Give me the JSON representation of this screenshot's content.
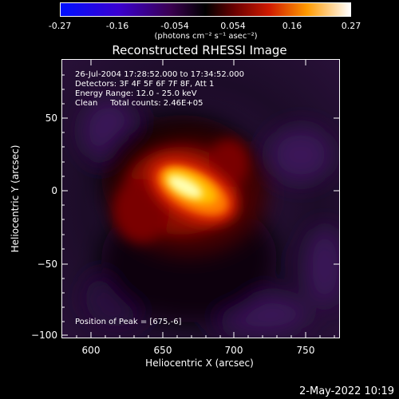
{
  "colorbar": {
    "ticks": [
      "-0.27",
      "-0.16",
      "-0.054",
      "0.054",
      "0.16",
      "0.27"
    ],
    "units_label": "(photons cm⁻² s⁻¹ asec⁻²)"
  },
  "chart_data": {
    "type": "heatmap",
    "title": "Reconstructed RHESSI Image",
    "xlabel": "Heliocentric X (arcsec)",
    "ylabel": "Heliocentric Y (arcsec)",
    "xlim": [
      580,
      773
    ],
    "ylim": [
      -103,
      100
    ],
    "x_ticks": [
      "600",
      "650",
      "700",
      "750"
    ],
    "y_ticks": [
      "50",
      "0",
      "−50",
      "−100"
    ],
    "colorbar_range": [
      -0.27,
      0.27
    ],
    "annotations": {
      "line1": "26-Jul-2004 17:28:52.000 to 17:34:52.000",
      "line2": "Detectors: 3F 4F 5F 6F 7F 8F, Att 1",
      "line3": "Energy Range: 12.0 - 25.0 keV",
      "line4": "Clean     Total counts: 2.46E+05",
      "peak": "Position of Peak = [675,-6]"
    },
    "peak_position": [
      675,
      -6
    ]
  },
  "footer": {
    "date": "2-May-2022 10:19"
  }
}
